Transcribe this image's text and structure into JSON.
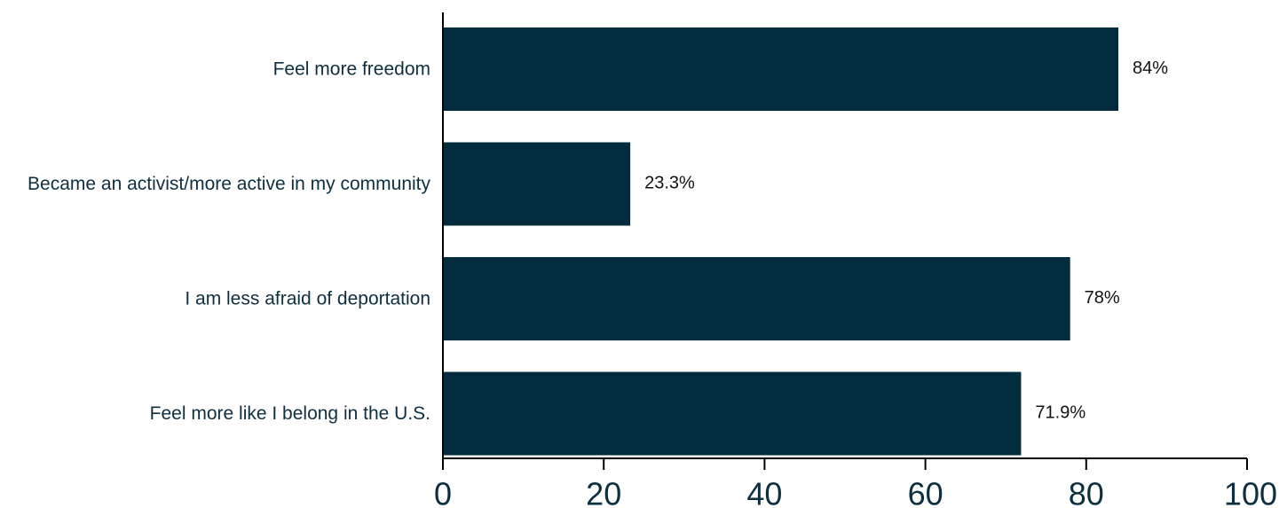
{
  "chart_data": {
    "type": "bar",
    "orientation": "horizontal",
    "categories": [
      "Feel more freedom",
      "Became an activist/more active in my community",
      "I am less afraid of deportation",
      "Feel more like I belong in the U.S."
    ],
    "values": [
      84,
      23.3,
      78,
      71.9
    ],
    "value_labels": [
      "84%",
      "23.3%",
      "78%",
      "71.9%"
    ],
    "xlim": [
      0,
      100
    ],
    "xticks": [
      0,
      20,
      40,
      60,
      80,
      100
    ],
    "xtick_labels": [
      "0",
      "20",
      "40",
      "60",
      "80",
      "100"
    ],
    "grid": false,
    "legend": "none",
    "bar_color": "#022c3e"
  }
}
